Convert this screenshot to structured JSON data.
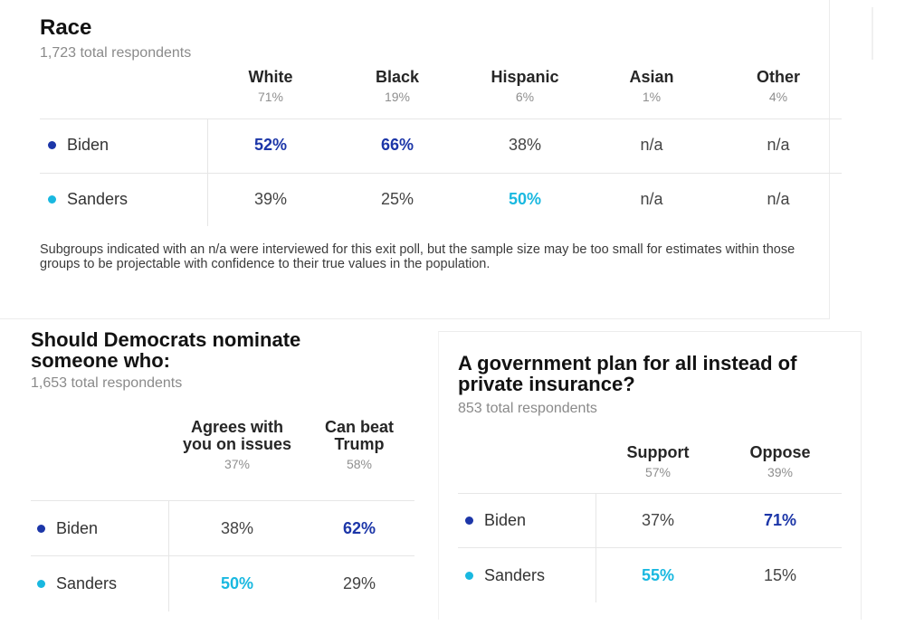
{
  "colors": {
    "biden": "#1c36a8",
    "sanders": "#19b8e0",
    "text": "#262626",
    "muted": "#8a8a8a",
    "grid": "#e6e6e6"
  },
  "chart_data": [
    {
      "type": "table",
      "title": "Race",
      "subtitle": "1,723 total respondents",
      "columns": [
        {
          "name": "White",
          "share": "71%"
        },
        {
          "name": "Black",
          "share": "19%"
        },
        {
          "name": "Hispanic",
          "share": "6%"
        },
        {
          "name": "Asian",
          "share": "1%"
        },
        {
          "name": "Other",
          "share": "4%"
        }
      ],
      "rows": [
        {
          "candidate": "Biden",
          "values": [
            "52%",
            "66%",
            "38%",
            "n/a",
            "n/a"
          ],
          "winners": [
            true,
            true,
            false,
            false,
            false
          ]
        },
        {
          "candidate": "Sanders",
          "values": [
            "39%",
            "25%",
            "50%",
            "n/a",
            "n/a"
          ],
          "winners": [
            false,
            false,
            true,
            false,
            false
          ]
        }
      ],
      "footnote": "Subgroups indicated with an n/a were interviewed for this exit poll, but the sample size may be too small for estimates within those groups to be projectable with confidence to their true values in the population."
    },
    {
      "type": "table",
      "title": "Should Democrats nominate someone who:",
      "subtitle": "1,653 total respondents",
      "columns": [
        {
          "name": "Agrees with you on issues",
          "share": "37%"
        },
        {
          "name": "Can beat Trump",
          "share": "58%"
        }
      ],
      "rows": [
        {
          "candidate": "Biden",
          "values": [
            "38%",
            "62%"
          ],
          "winners": [
            false,
            true
          ]
        },
        {
          "candidate": "Sanders",
          "values": [
            "50%",
            "29%"
          ],
          "winners": [
            true,
            false
          ]
        }
      ]
    },
    {
      "type": "table",
      "title": "A government plan for all instead of private insurance?",
      "subtitle": "853 total respondents",
      "columns": [
        {
          "name": "Support",
          "share": "57%"
        },
        {
          "name": "Oppose",
          "share": "39%"
        }
      ],
      "rows": [
        {
          "candidate": "Biden",
          "values": [
            "37%",
            "71%"
          ],
          "winners": [
            false,
            true
          ]
        },
        {
          "candidate": "Sanders",
          "values": [
            "55%",
            "15%"
          ],
          "winners": [
            true,
            false
          ]
        }
      ]
    }
  ]
}
